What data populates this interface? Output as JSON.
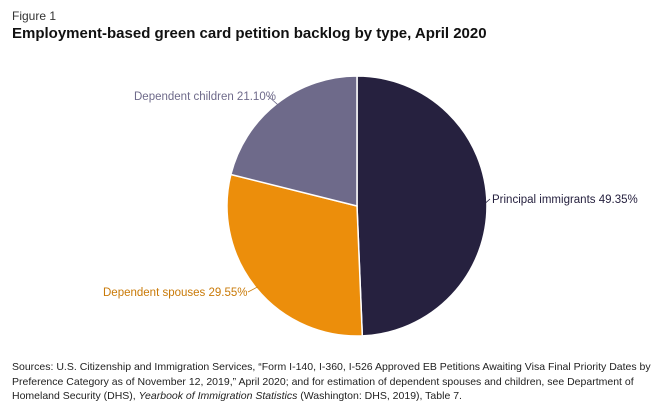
{
  "figure_label": "Figure 1",
  "title": "Employment-based green card petition backlog by type, April 2020",
  "chart_data": {
    "type": "pie",
    "slices": [
      {
        "label": "Principal immigrants",
        "value": 49.35,
        "display": "Principal immigrants 49.35%",
        "color": "#26213f"
      },
      {
        "label": "Dependent spouses",
        "value": 29.55,
        "display": "Dependent spouses 29.55%",
        "color": "#ec8e0b"
      },
      {
        "label": "Dependent children",
        "value": 21.1,
        "display": "Dependent children 21.10%",
        "color": "#6e6a8a"
      }
    ]
  },
  "source": {
    "part1": "Sources: U.S. Citizenship and Immigration Services, “Form I-140, I-360, I-526 Approved EB Petitions Awaiting Visa Final Priority Dates by Preference Category as of November 12, 2019,” April 2020; and for estimation of dependent spouses and children, see Department of Homeland Security (DHS), ",
    "italic": "Yearbook of Immigration Statistics",
    "part2": " (Washington: DHS, 2019), Table 7."
  }
}
